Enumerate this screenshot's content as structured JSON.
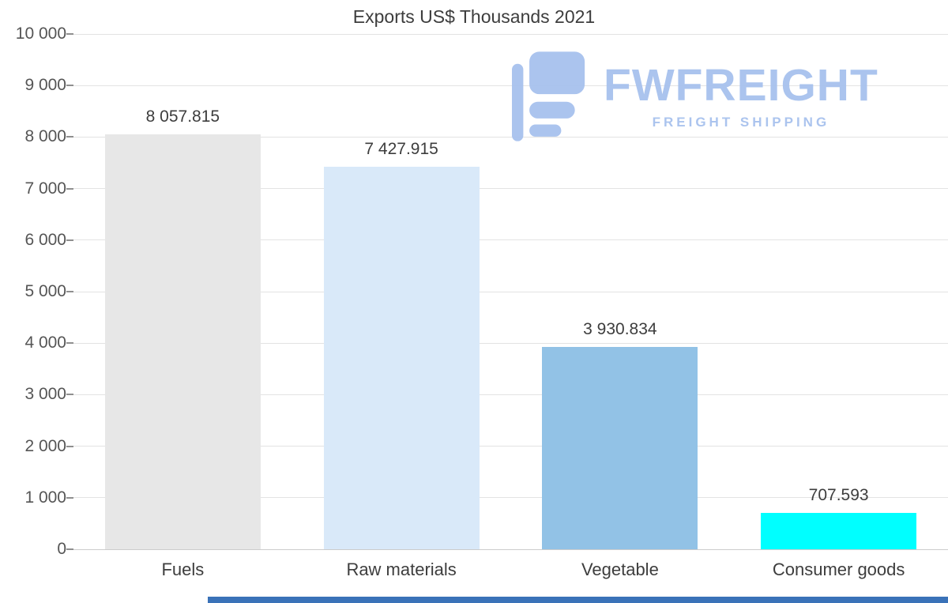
{
  "chart_data": {
    "type": "bar",
    "title": "Exports US$ Thousands 2021",
    "categories": [
      "Fuels",
      "Raw materials",
      "Vegetable",
      "Consumer goods"
    ],
    "values": [
      8057.815,
      7427.915,
      3930.834,
      707.593
    ],
    "value_labels": [
      "8 057.815",
      "7 427.915",
      "3 930.834",
      "707.593"
    ],
    "bar_colors": [
      "#e7e7e7",
      "#d9e9f9",
      "#92c2e6",
      "#00ffff"
    ],
    "xlabel": "",
    "ylabel": "",
    "ylim": [
      0,
      10000
    ],
    "ytick_step": 1000,
    "ytick_labels_top_to_bottom": [
      "10 000",
      "9 000",
      "8 000",
      "7 000",
      "6 000",
      "5 000",
      "4 000",
      "3 000",
      "2 000",
      "1 000",
      "0"
    ],
    "grid": true,
    "legend": false
  },
  "watermark": {
    "brand": "FWFREIGHT",
    "tagline": "FREIGHT SHIPPING",
    "color": "#a7c1ee"
  },
  "colors": {
    "grid": "#e3e3e3",
    "axis_text": "#555555",
    "label_text": "#3d3d3d",
    "footer_bar": "#3a72b8"
  }
}
